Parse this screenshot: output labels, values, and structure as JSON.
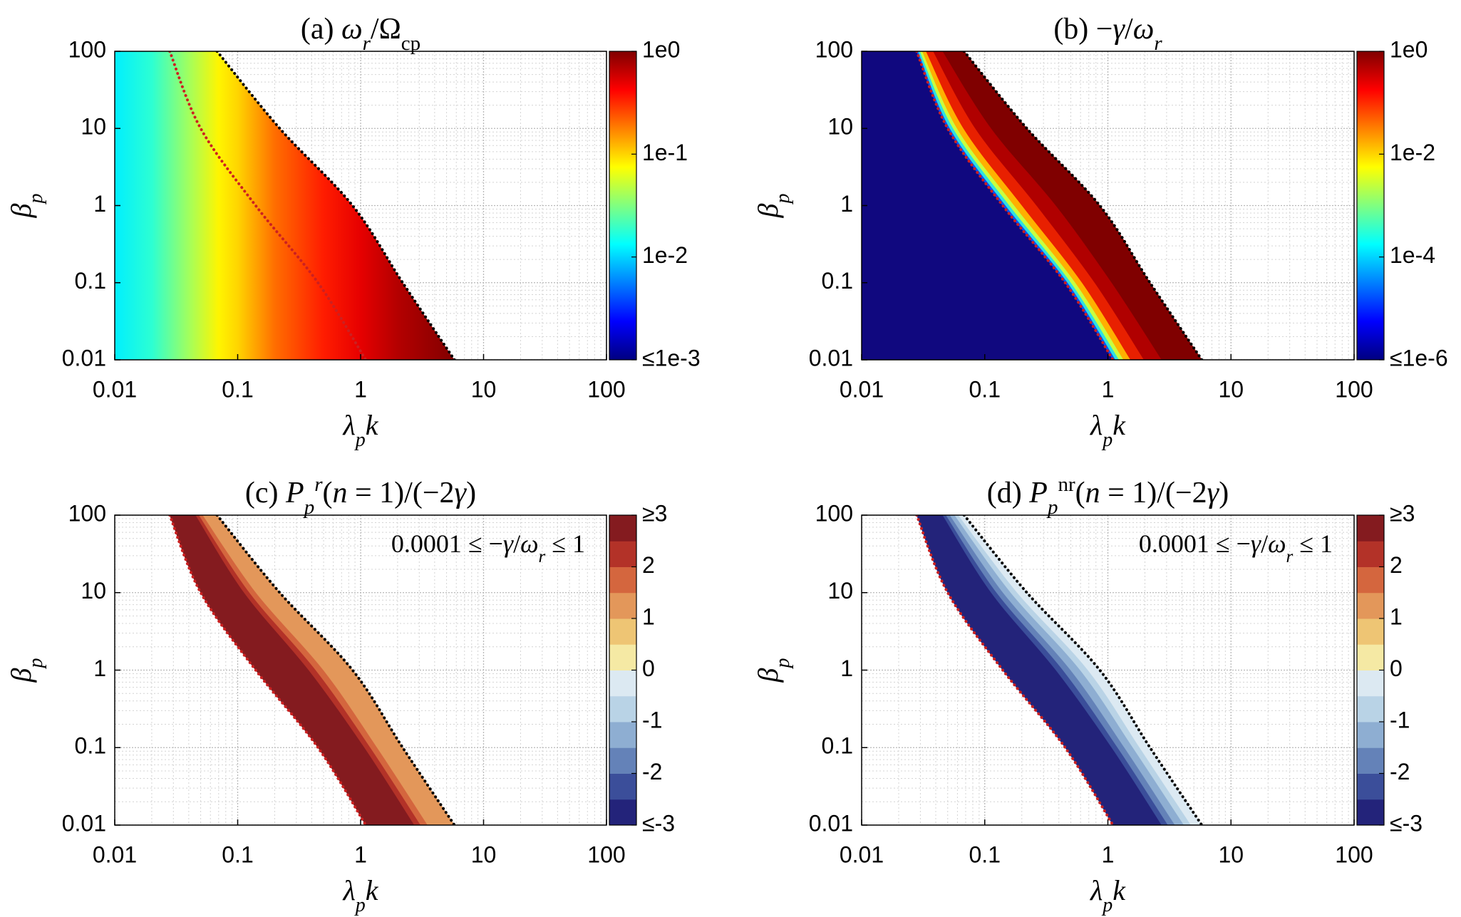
{
  "chart_data": [
    {
      "type": "contour",
      "fill": "gradient",
      "title": [
        {
          "text": "(a) "
        },
        {
          "text": "ω",
          "italic": true
        },
        {
          "text": "r",
          "italic": true,
          "shift": "sub"
        },
        {
          "text": "/Ω"
        },
        {
          "text": "cp",
          "shift": "sub"
        }
      ],
      "xlabel": [
        {
          "text": "λ",
          "italic": true
        },
        {
          "text": "p",
          "italic": true,
          "shift": "sub"
        },
        {
          "text": "k",
          "italic": true
        }
      ],
      "ylabel": [
        {
          "text": "β",
          "italic": true
        },
        {
          "text": "p",
          "italic": true,
          "shift": "sub"
        }
      ],
      "xscale": "log",
      "yscale": "log",
      "xlim": [
        0.01,
        100
      ],
      "ylim": [
        0.01,
        100
      ],
      "xticks": [
        0.01,
        0.1,
        1,
        10,
        100
      ],
      "yticks": [
        0.01,
        0.1,
        1,
        10,
        100
      ],
      "grid": true,
      "y": [
        100,
        10,
        1,
        0.1,
        0.01
      ],
      "field": {
        "x": [
          0.01,
          0.02,
          0.04,
          0.07,
          0.1,
          0.2,
          0.5,
          1,
          2,
          6
        ],
        "values": [
          0.012,
          0.018,
          0.04,
          0.08,
          0.1,
          0.2,
          0.35,
          0.5,
          0.7,
          1
        ]
      },
      "lines": [
        {
          "x": [
            0.068,
            0.22,
            0.86,
            2.2,
            5.8
          ],
          "color": "#000000"
        },
        {
          "x": [
            0.028,
            0.05,
            0.14,
            0.45,
            1.1
          ],
          "color": "#cc2020"
        }
      ],
      "colorbar": {
        "colormap": "jet",
        "scale": "log",
        "lim": [
          0.001,
          1
        ],
        "ticks": [
          {
            "value": 1,
            "label": "1e0"
          },
          {
            "value": 0.1,
            "label": "1e-1"
          },
          {
            "value": 0.01,
            "label": "1e-2"
          },
          {
            "value": 0.001,
            "label": "≤1e-3"
          }
        ]
      }
    },
    {
      "type": "contour",
      "fill": "bands",
      "base_color": "#10087f",
      "title": [
        {
          "text": "(b) −"
        },
        {
          "text": "γ",
          "italic": true
        },
        {
          "text": "/"
        },
        {
          "text": "ω",
          "italic": true
        },
        {
          "text": "r",
          "italic": true,
          "shift": "sub"
        }
      ],
      "xlabel": [
        {
          "text": "λ",
          "italic": true
        },
        {
          "text": "p",
          "italic": true,
          "shift": "sub"
        },
        {
          "text": "k",
          "italic": true
        }
      ],
      "ylabel": [
        {
          "text": "β",
          "italic": true
        },
        {
          "text": "p",
          "italic": true,
          "shift": "sub"
        }
      ],
      "xscale": "log",
      "yscale": "log",
      "xlim": [
        0.01,
        100
      ],
      "ylim": [
        0.01,
        100
      ],
      "xticks": [
        0.01,
        0.1,
        1,
        10,
        100
      ],
      "yticks": [
        0.01,
        0.1,
        1,
        10,
        100
      ],
      "grid": true,
      "y": [
        100,
        10,
        1,
        0.1,
        0.01
      ],
      "bands": [
        {
          "x": [
            0.028,
            0.05,
            0.14,
            0.45,
            1.1
          ],
          "color": "#0050ff"
        },
        {
          "x": [
            0.0288,
            0.0522,
            0.148,
            0.472,
            1.156
          ],
          "color": "#30e0e0"
        },
        {
          "x": [
            0.0298,
            0.0555,
            0.159,
            0.502,
            1.236
          ],
          "color": "#c8ff40"
        },
        {
          "x": [
            0.0311,
            0.0597,
            0.174,
            0.545,
            1.343
          ],
          "color": "#ffb000"
        },
        {
          "x": [
            0.0334,
            0.0673,
            0.201,
            0.618,
            1.531
          ],
          "color": "#e82000"
        },
        {
          "x": [
            0.0382,
            0.0839,
            0.264,
            0.783,
            1.968
          ],
          "color": "#b00000"
        },
        {
          "x": [
            0.0456,
            0.113,
            0.379,
            1.076,
            2.742
          ],
          "color": "#800000"
        }
      ],
      "lines": [
        {
          "x": [
            0.068,
            0.22,
            0.86,
            2.2,
            5.8
          ],
          "color": "#000000"
        },
        {
          "x": [
            0.028,
            0.05,
            0.14,
            0.45,
            1.1
          ],
          "color": "#cc2020"
        }
      ],
      "colorbar": {
        "colormap": "jet",
        "scale": "log",
        "lim": [
          1e-06,
          1
        ],
        "ticks": [
          {
            "value": 1,
            "label": "1e0"
          },
          {
            "value": 0.01,
            "label": "1e-2"
          },
          {
            "value": 0.0001,
            "label": "1e-4"
          },
          {
            "value": 1e-06,
            "label": "≤1e-6"
          }
        ]
      }
    },
    {
      "type": "contour",
      "fill": "bands",
      "title": [
        {
          "text": "(c) "
        },
        {
          "text": "P",
          "italic": true
        },
        {
          "text": "p",
          "italic": true,
          "shift": "sub"
        },
        {
          "text": "r",
          "italic": true,
          "shift": "super"
        },
        {
          "text": "("
        },
        {
          "text": "n",
          "italic": true
        },
        {
          "text": " = 1)/(−2"
        },
        {
          "text": "γ",
          "italic": true
        },
        {
          "text": ")"
        }
      ],
      "annotation": [
        {
          "text": "0.0001 ≤ −"
        },
        {
          "text": "γ",
          "italic": true
        },
        {
          "text": "/"
        },
        {
          "text": "ω",
          "italic": true
        },
        {
          "text": "r",
          "italic": true,
          "shift": "sub"
        },
        {
          "text": " ≤ 1"
        }
      ],
      "xlabel": [
        {
          "text": "λ",
          "italic": true
        },
        {
          "text": "p",
          "italic": true,
          "shift": "sub"
        },
        {
          "text": "k",
          "italic": true
        }
      ],
      "ylabel": [
        {
          "text": "β",
          "italic": true
        },
        {
          "text": "p",
          "italic": true,
          "shift": "sub"
        }
      ],
      "xscale": "log",
      "yscale": "log",
      "xlim": [
        0.01,
        100
      ],
      "ylim": [
        0.01,
        100
      ],
      "xticks": [
        0.01,
        0.1,
        1,
        10,
        100
      ],
      "yticks": [
        0.01,
        0.1,
        1,
        10,
        100
      ],
      "grid": true,
      "y": [
        100,
        10,
        1,
        0.1,
        0.01
      ],
      "bands": [
        {
          "x": [
            0.028,
            0.05,
            0.14,
            0.45,
            1.1
          ],
          "color": "#841b1f"
        },
        {
          "x": [
            0.0456,
            0.113,
            0.379,
            1.076,
            2.742
          ],
          "color": "#b33228"
        },
        {
          "x": [
            0.0485,
            0.125,
            0.432,
            1.202,
            3.083
          ],
          "color": "#d4663e"
        },
        {
          "x": [
            0.0521,
            0.141,
            0.499,
            1.365,
            3.516
          ],
          "color": "#e3975a"
        }
      ],
      "lines": [
        {
          "x": [
            0.068,
            0.22,
            0.86,
            2.2,
            5.8
          ],
          "color": "#000000"
        },
        {
          "x": [
            0.028,
            0.05,
            0.14,
            0.45,
            1.1
          ],
          "color": "#cc2020"
        }
      ],
      "colorbar": {
        "scale": "linear",
        "lim": [
          -3,
          3
        ],
        "colors": [
          "#23237a",
          "#3b4e9a",
          "#6482b8",
          "#8eaed2",
          "#b9d3e6",
          "#dce9f2",
          "#f5e9a4",
          "#eec574",
          "#e3975a",
          "#d4663e",
          "#b33228",
          "#841b1f"
        ],
        "ticks": [
          {
            "value": 3,
            "label": "≥3"
          },
          2,
          1,
          0,
          -1,
          -2,
          {
            "value": -3,
            "label": "≤-3"
          }
        ]
      }
    },
    {
      "type": "contour",
      "fill": "bands",
      "title": [
        {
          "text": "(d) "
        },
        {
          "text": "P",
          "italic": true
        },
        {
          "text": "p",
          "italic": true,
          "shift": "sub"
        },
        {
          "text": "nr",
          "shift": "super"
        },
        {
          "text": "("
        },
        {
          "text": "n",
          "italic": true
        },
        {
          "text": " = 1)/(−2"
        },
        {
          "text": "γ",
          "italic": true
        },
        {
          "text": ")"
        }
      ],
      "annotation": [
        {
          "text": "0.0001 ≤ −"
        },
        {
          "text": "γ",
          "italic": true
        },
        {
          "text": "/"
        },
        {
          "text": "ω",
          "italic": true
        },
        {
          "text": "r",
          "italic": true,
          "shift": "sub"
        },
        {
          "text": " ≤ 1"
        }
      ],
      "xlabel": [
        {
          "text": "λ",
          "italic": true
        },
        {
          "text": "p",
          "italic": true,
          "shift": "sub"
        },
        {
          "text": "k",
          "italic": true
        }
      ],
      "ylabel": [
        {
          "text": "β",
          "italic": true
        },
        {
          "text": "p",
          "italic": true,
          "shift": "sub"
        }
      ],
      "xscale": "log",
      "yscale": "log",
      "xlim": [
        0.01,
        100
      ],
      "ylim": [
        0.01,
        100
      ],
      "xticks": [
        0.01,
        0.1,
        1,
        10,
        100
      ],
      "yticks": [
        0.01,
        0.1,
        1,
        10,
        100
      ],
      "grid": true,
      "y": [
        100,
        10,
        1,
        0.1,
        0.01
      ],
      "bands": [
        {
          "x": [
            0.028,
            0.05,
            0.14,
            0.45,
            1.1
          ],
          "color": "#23237a"
        },
        {
          "x": [
            0.0456,
            0.113,
            0.379,
            1.076,
            2.742
          ],
          "color": "#3b4e9a"
        },
        {
          "x": [
            0.0485,
            0.125,
            0.432,
            1.202,
            3.083
          ],
          "color": "#6482b8"
        },
        {
          "x": [
            0.0521,
            0.141,
            0.499,
            1.365,
            3.516
          ],
          "color": "#8eaed2"
        },
        {
          "x": [
            0.057,
            0.163,
            0.597,
            1.6,
            4.159
          ],
          "color": "#b9d3e6"
        },
        {
          "x": [
            0.0612,
            0.184,
            0.69,
            1.816,
            4.742
          ],
          "color": "#dce9f2"
        }
      ],
      "lines": [
        {
          "x": [
            0.068,
            0.22,
            0.86,
            2.2,
            5.8
          ],
          "color": "#000000"
        },
        {
          "x": [
            0.028,
            0.05,
            0.14,
            0.45,
            1.1
          ],
          "color": "#cc2020"
        }
      ],
      "colorbar": {
        "scale": "linear",
        "lim": [
          -3,
          3
        ],
        "colors": [
          "#23237a",
          "#3b4e9a",
          "#6482b8",
          "#8eaed2",
          "#b9d3e6",
          "#dce9f2",
          "#f5e9a4",
          "#eec574",
          "#e3975a",
          "#d4663e",
          "#b33228",
          "#841b1f"
        ],
        "ticks": [
          {
            "value": 3,
            "label": "≥3"
          },
          2,
          1,
          0,
          -1,
          -2,
          {
            "value": -3,
            "label": "≤-3"
          }
        ]
      }
    }
  ]
}
